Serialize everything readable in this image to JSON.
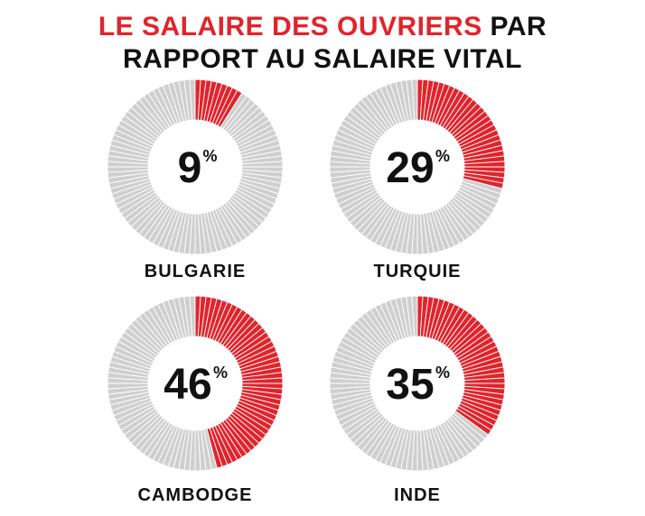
{
  "title": {
    "highlight": "LE SALAIRE DES OUVRIERS",
    "rest": " PAR",
    "line2": "RAPPORT AU SALAIRE VITAL"
  },
  "colors": {
    "accent": "#e0242c",
    "rest": "#cfcfcf",
    "text": "#111111"
  },
  "chart_data": [
    {
      "type": "pie",
      "category": "BULGARIE",
      "value": 9,
      "label": "9",
      "unit": "%"
    },
    {
      "type": "pie",
      "category": "TURQUIE",
      "value": 29,
      "label": "29",
      "unit": "%"
    },
    {
      "type": "pie",
      "category": "CAMBODGE",
      "value": 46,
      "label": "46",
      "unit": "%"
    },
    {
      "type": "pie",
      "category": "INDE",
      "value": 35,
      "label": "35",
      "unit": "%"
    }
  ]
}
